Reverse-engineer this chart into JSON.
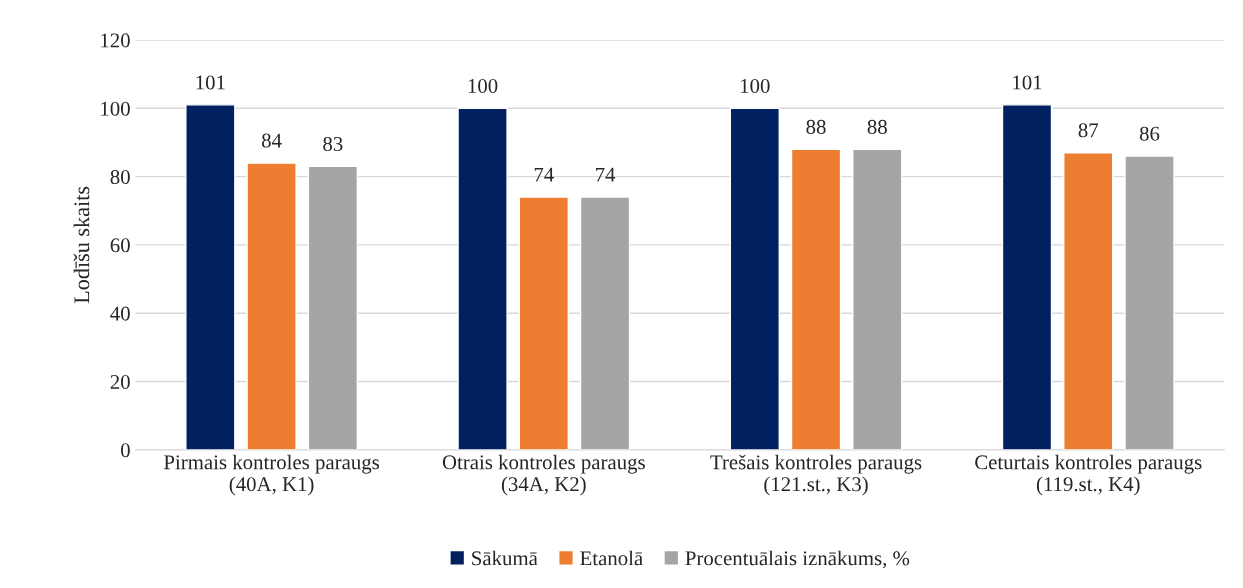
{
  "chart_data": {
    "type": "bar",
    "ylabel": "Lodīšu skaits",
    "categories": [
      "Pirmais kontroles paraugs\n(40A, K1)",
      "Otrais kontroles paraugs\n(34A, K2)",
      "Trešais kontroles paraugs\n(121.st., K3)",
      "Ceturtais kontroles paraugs\n(119.st., K4)"
    ],
    "series": [
      {
        "name": "Sākumā",
        "color": "#002060",
        "values": [
          101,
          100,
          100,
          101
        ]
      },
      {
        "name": "Etanolā",
        "color": "#ed7d31",
        "values": [
          84,
          74,
          88,
          87
        ]
      },
      {
        "name": "Procentuālais iznākums, %",
        "color": "#a5a5a5",
        "values": [
          83,
          74,
          88,
          86
        ]
      }
    ],
    "ylim": [
      0,
      120
    ],
    "yticks": [
      0,
      20,
      40,
      60,
      80,
      100,
      120
    ],
    "grid": "y",
    "legend": "bottom",
    "data_labels": true
  }
}
